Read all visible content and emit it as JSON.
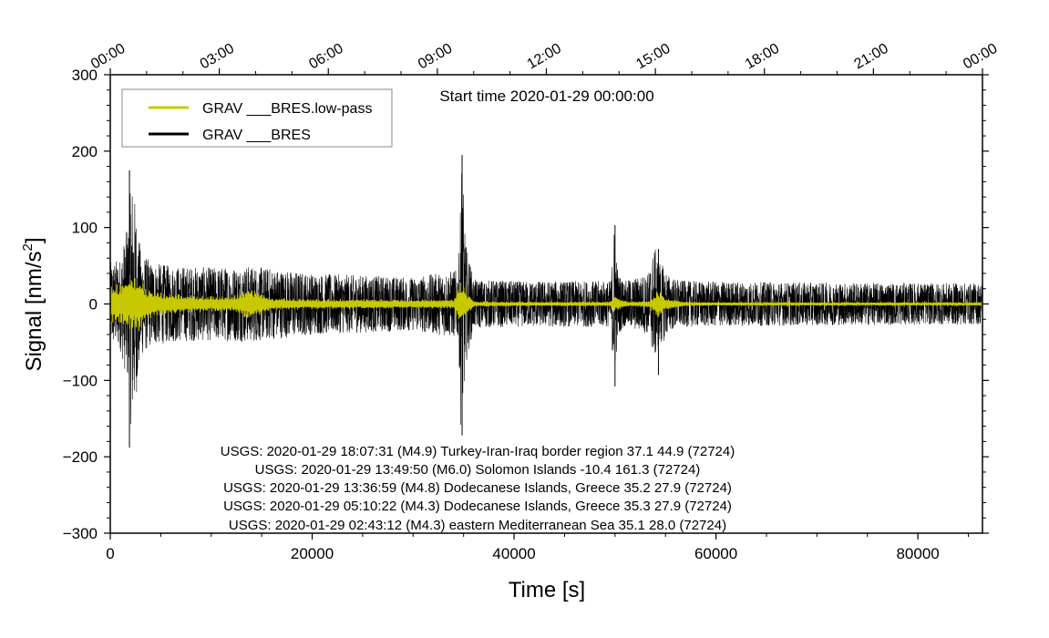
{
  "chart_data": {
    "type": "line",
    "title": "Start time 2020-01-29 00:00:00",
    "xlabel": "Time [s]",
    "ylabel_main": "Signal [nm/s",
    "ylabel_sup": "2",
    "ylabel_tail": "]",
    "xlim": [
      0,
      86400
    ],
    "ylim": [
      -300,
      300
    ],
    "x_ticks": [
      0,
      20000,
      40000,
      60000,
      80000
    ],
    "x_tick_labels": [
      "0",
      "20000",
      "40000",
      "60000",
      "80000"
    ],
    "y_ticks": [
      -300,
      -200,
      -100,
      0,
      100,
      200,
      300
    ],
    "y_tick_labels": [
      "−300",
      "−200",
      "−100",
      "0",
      "100",
      "200",
      "300"
    ],
    "top_axis_ticks_s": [
      0,
      10800,
      21600,
      32400,
      43200,
      54000,
      64800,
      75600,
      86400
    ],
    "top_axis_tick_labels": [
      "00:00",
      "03:00",
      "06:00",
      "09:00",
      "12:00",
      "15:00",
      "18:00",
      "21:00",
      "00:00"
    ],
    "legend_position": "top-left",
    "series": [
      {
        "name": "GRAV ___BRES.low-pass",
        "color": "#c8c800",
        "amplitude_envelope": {
          "x": [
            0,
            1000,
            1800,
            2500,
            3000,
            3600,
            5000,
            8000,
            12000,
            13500,
            14300,
            16000,
            20000,
            30000,
            34000,
            34700,
            35300,
            36000,
            40000,
            49500,
            49900,
            50600,
            51500,
            53500,
            54200,
            55000,
            57000,
            60000,
            70000,
            80000,
            86400
          ],
          "y": [
            25,
            28,
            35,
            40,
            35,
            20,
            15,
            12,
            10,
            20,
            18,
            8,
            7,
            6,
            6,
            30,
            18,
            4,
            3,
            3,
            12,
            6,
            3,
            5,
            20,
            8,
            3,
            2,
            2,
            2,
            2
          ]
        }
      },
      {
        "name": "GRAV ___BRES",
        "color": "#000000",
        "amplitude_envelope": {
          "x": [
            0,
            1000,
            1800,
            2100,
            2500,
            3000,
            4000,
            6000,
            10000,
            14000,
            20000,
            30000,
            34500,
            34800,
            35200,
            36000,
            40000,
            49600,
            49900,
            50300,
            51000,
            53300,
            53900,
            54500,
            55500,
            57000,
            70000,
            86400
          ],
          "y": [
            55,
            60,
            110,
            170,
            130,
            70,
            55,
            50,
            48,
            50,
            40,
            35,
            45,
            195,
            80,
            32,
            30,
            30,
            105,
            40,
            30,
            40,
            75,
            55,
            35,
            30,
            28,
            27
          ]
        },
        "peaks": [
          {
            "x": 1900,
            "max": 175,
            "min": -188
          },
          {
            "x": 34850,
            "max": 195,
            "min": -172
          },
          {
            "x": 50000,
            "max": 103,
            "min": -108
          },
          {
            "x": 54300,
            "max": 72,
            "min": -93
          }
        ]
      }
    ],
    "annotations": [
      "USGS: 2020-01-29 18:07:31 (M4.9) Turkey-Iran-Iraq border region 37.1 44.9 (72724)",
      "USGS: 2020-01-29 13:49:50 (M6.0) Solomon Islands -10.4 161.3 (72724)",
      "USGS: 2020-01-29 13:36:59 (M4.8) Dodecanese Islands, Greece 35.2 27.9 (72724)",
      "USGS: 2020-01-29 05:10:22 (M4.3) Dodecanese Islands, Greece 35.3 27.9 (72724)",
      "USGS: 2020-01-29 02:43:12 (M4.3) eastern Mediterranean Sea 35.1 28.0 (72724)"
    ]
  }
}
